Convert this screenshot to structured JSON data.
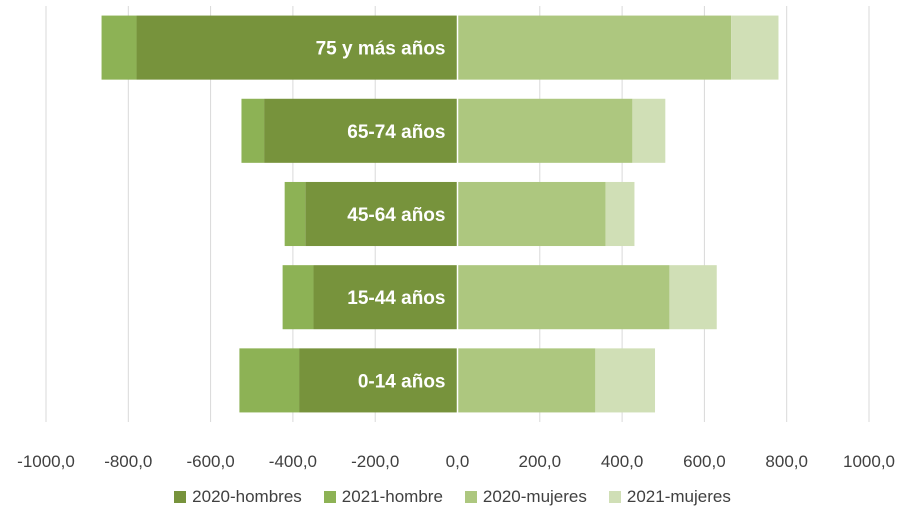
{
  "chart_data": {
    "type": "bar",
    "orientation": "horizontal",
    "stacked": true,
    "categories": [
      "0-14 años",
      "15-44 años",
      "45-64 años",
      "65-74 años",
      "75 y más años"
    ],
    "series": [
      {
        "name": "2020-hombres",
        "color": "#77933c",
        "values": [
          -385,
          -350,
          -370,
          -470,
          -780
        ]
      },
      {
        "name": "2021-hombre",
        "color": "#8db255",
        "values": [
          -145,
          -75,
          -50,
          -55,
          -85
        ]
      },
      {
        "name": "2020-mujeres",
        "color": "#adc77f",
        "values": [
          335,
          515,
          360,
          425,
          665
        ]
      },
      {
        "name": "2021-mujeres",
        "color": "#d0dfb6",
        "values": [
          145,
          115,
          70,
          80,
          115
        ]
      }
    ],
    "xlim": [
      -1000,
      1000
    ],
    "xticks": [
      -1000,
      -800,
      -600,
      -400,
      -200,
      0,
      200,
      400,
      600,
      800,
      1000
    ],
    "xtick_labels": [
      "-1000,0",
      "-800,0",
      "-600,0",
      "-400,0",
      "-200,0",
      "0,0",
      "200,0",
      "400,0",
      "600,0",
      "800,0",
      "1000,0"
    ],
    "grid": "vertical",
    "legend_position": "bottom",
    "title": "",
    "xlabel": "",
    "ylabel": ""
  }
}
